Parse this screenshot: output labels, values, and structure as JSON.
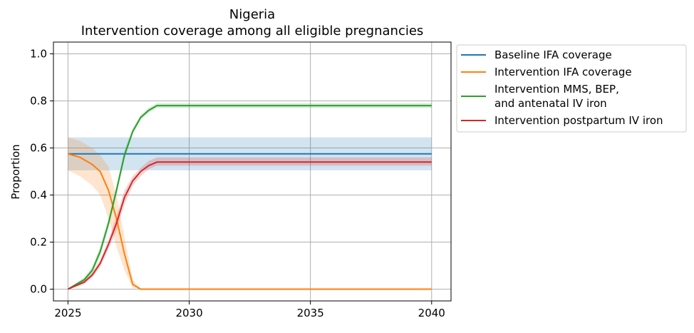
{
  "chart_data": {
    "type": "line",
    "title": "Nigeria",
    "subtitle": "Intervention coverage among all eligible pregnancies",
    "xlabel": "",
    "ylabel": "Proportion",
    "xlim": [
      2024.4,
      2040.8
    ],
    "ylim": [
      -0.05,
      1.05
    ],
    "xticks": [
      2025,
      2030,
      2035,
      2040
    ],
    "yticks": [
      0.0,
      0.2,
      0.4,
      0.6,
      0.8,
      1.0
    ],
    "ytick_labels": [
      "0.0",
      "0.2",
      "0.4",
      "0.6",
      "0.8",
      "1.0"
    ],
    "grid": true,
    "legend_position": "outside-right",
    "series": [
      {
        "name": "Baseline IFA coverage",
        "color": "#1f77b4",
        "x": [
          2025,
          2040
        ],
        "values": [
          0.575,
          0.575
        ],
        "band_lower": [
          0.505,
          0.505
        ],
        "band_upper": [
          0.645,
          0.645
        ]
      },
      {
        "name": "Intervention IFA coverage",
        "color": "#ff7f0e",
        "x": [
          2025,
          2025.5,
          2026,
          2026.33,
          2026.67,
          2027,
          2027.33,
          2027.67,
          2028,
          2029,
          2030,
          2035,
          2040
        ],
        "values": [
          0.575,
          0.56,
          0.53,
          0.5,
          0.42,
          0.3,
          0.15,
          0.02,
          0.0,
          0.0,
          0.0,
          0.0,
          0.0
        ],
        "band_lower": [
          0.505,
          0.48,
          0.44,
          0.4,
          0.3,
          0.18,
          0.08,
          0.005,
          0.0,
          0.0,
          0.0,
          0.0,
          0.0
        ],
        "band_upper": [
          0.645,
          0.63,
          0.6,
          0.57,
          0.52,
          0.4,
          0.22,
          0.04,
          0.0,
          0.0,
          0.0,
          0.0,
          0.0
        ]
      },
      {
        "name": "Intervention MMS, BEP,\nand antenatal IV iron",
        "color": "#2ca02c",
        "x": [
          2025,
          2025.33,
          2025.67,
          2026,
          2026.33,
          2026.67,
          2027,
          2027.33,
          2027.67,
          2028,
          2028.33,
          2028.67,
          2029,
          2030,
          2035,
          2040
        ],
        "values": [
          0.0,
          0.02,
          0.04,
          0.08,
          0.16,
          0.28,
          0.42,
          0.57,
          0.67,
          0.73,
          0.76,
          0.78,
          0.78,
          0.78,
          0.78,
          0.78
        ],
        "band_lower": [
          0.0,
          0.015,
          0.03,
          0.065,
          0.14,
          0.26,
          0.4,
          0.55,
          0.66,
          0.72,
          0.75,
          0.77,
          0.77,
          0.77,
          0.77,
          0.77
        ],
        "band_upper": [
          0.0,
          0.025,
          0.05,
          0.095,
          0.18,
          0.3,
          0.44,
          0.59,
          0.685,
          0.74,
          0.77,
          0.79,
          0.79,
          0.79,
          0.79,
          0.79
        ]
      },
      {
        "name": "Intervention postpartum IV iron",
        "color": "#d62728",
        "x": [
          2025,
          2025.33,
          2025.67,
          2026,
          2026.33,
          2026.67,
          2027,
          2027.33,
          2027.67,
          2028,
          2028.33,
          2028.67,
          2029,
          2030,
          2035,
          2040
        ],
        "values": [
          0.0,
          0.015,
          0.03,
          0.06,
          0.11,
          0.19,
          0.28,
          0.39,
          0.46,
          0.5,
          0.525,
          0.54,
          0.54,
          0.54,
          0.54,
          0.54
        ],
        "band_lower": [
          0.0,
          0.01,
          0.022,
          0.05,
          0.095,
          0.17,
          0.25,
          0.36,
          0.44,
          0.48,
          0.51,
          0.525,
          0.525,
          0.525,
          0.525,
          0.525
        ],
        "band_upper": [
          0.0,
          0.02,
          0.038,
          0.07,
          0.125,
          0.21,
          0.31,
          0.42,
          0.48,
          0.515,
          0.545,
          0.56,
          0.56,
          0.56,
          0.56,
          0.56
        ]
      }
    ]
  }
}
